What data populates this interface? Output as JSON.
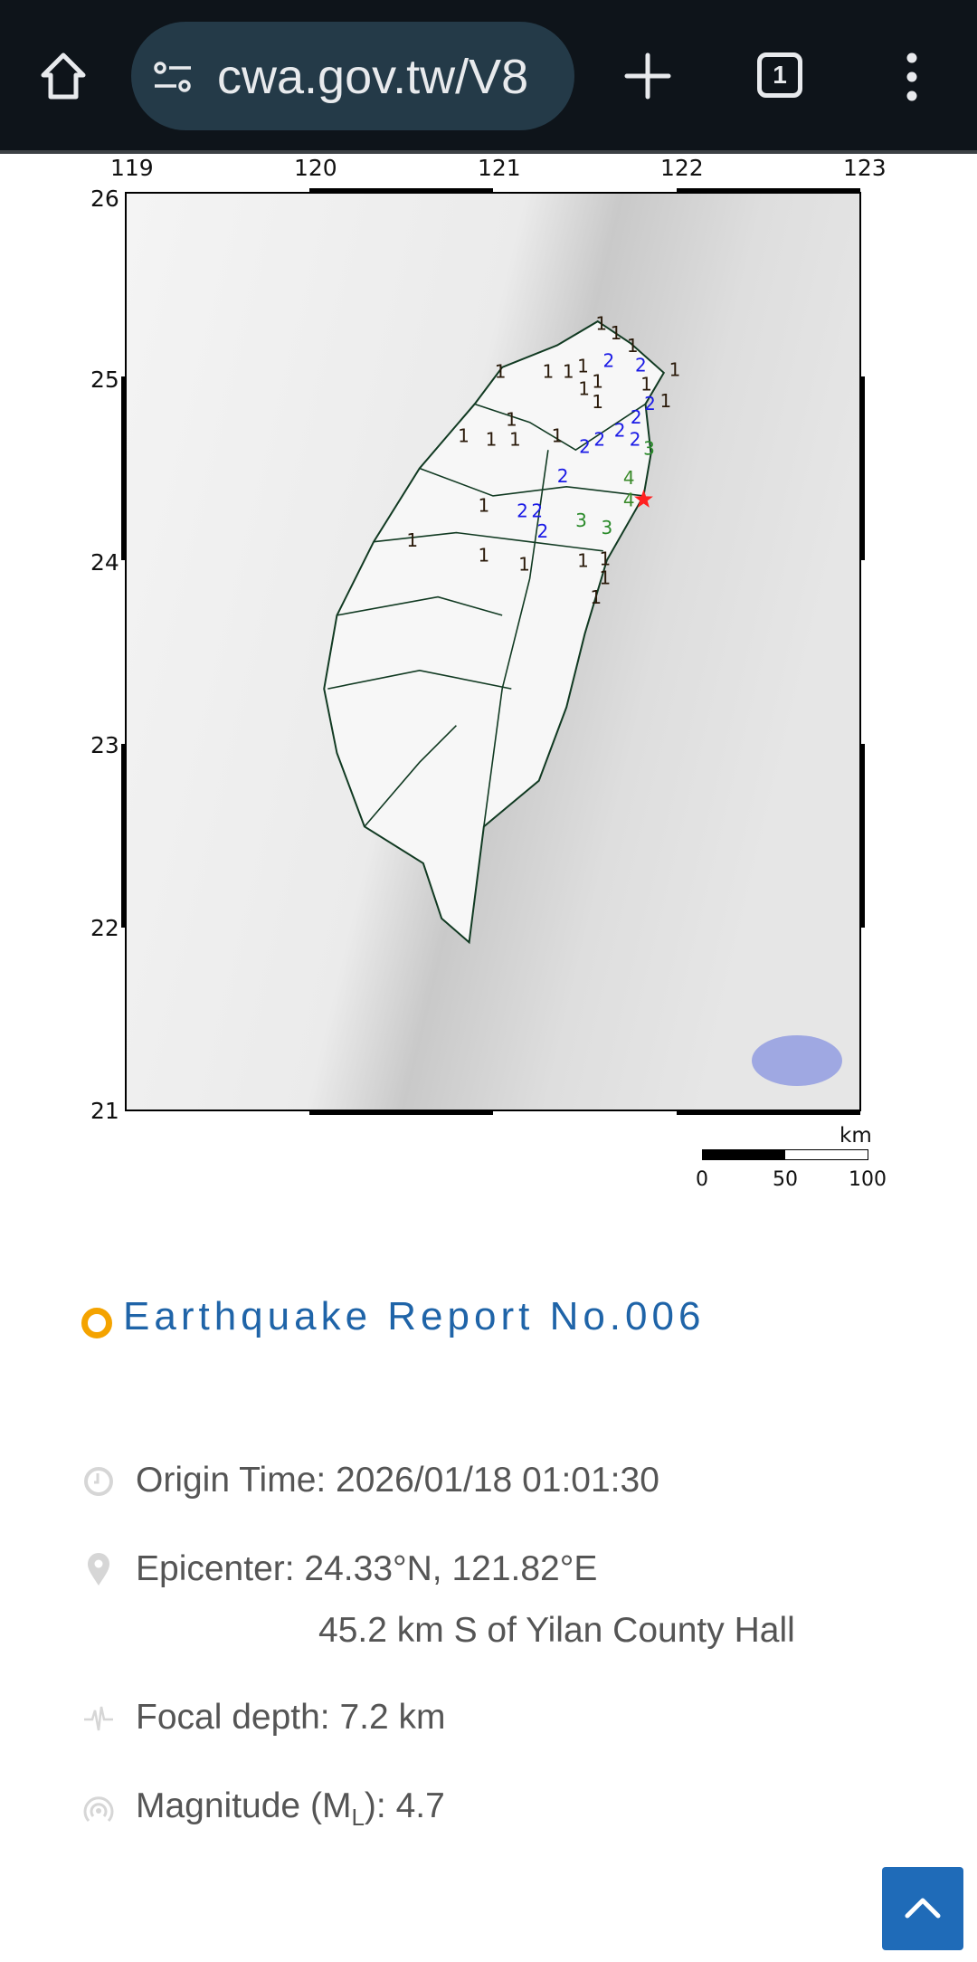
{
  "browser": {
    "url": "cwa.gov.tw/V8",
    "tab_count": "1",
    "icons": [
      "home-icon",
      "site-settings-icon",
      "new-tab-icon",
      "tab-switcher-icon",
      "more-menu-icon"
    ]
  },
  "map": {
    "lon_ticks": [
      "119",
      "120",
      "121",
      "122",
      "123"
    ],
    "lat_ticks": [
      "26",
      "25",
      "24",
      "23",
      "22",
      "21"
    ],
    "scale_unit": "km",
    "scale_labels": [
      "0",
      "50",
      "100"
    ],
    "epicenter": {
      "lat": 24.33,
      "lon": 121.82,
      "color": "#ff2020"
    },
    "intensity_colors": {
      "1": "#2a1a0a",
      "2": "#1a1ae6",
      "3": "#2a8a2a",
      "4": "#3a8a2a"
    },
    "intensities": [
      {
        "v": "1",
        "lon": 121.59,
        "lat": 25.28
      },
      {
        "v": "1",
        "lon": 121.67,
        "lat": 25.23
      },
      {
        "v": "1",
        "lon": 121.76,
        "lat": 25.16
      },
      {
        "v": "2",
        "lon": 121.63,
        "lat": 25.08
      },
      {
        "v": "2",
        "lon": 121.78,
        "lat": 25.08
      },
      {
        "v": "1",
        "lon": 121.3,
        "lat": 25.02
      },
      {
        "v": "1",
        "lon": 121.41,
        "lat": 25.02
      },
      {
        "v": "1",
        "lon": 121.49,
        "lat": 25.05
      },
      {
        "v": "1",
        "lon": 121.54,
        "lat": 25.04
      },
      {
        "v": "1",
        "lon": 121.04,
        "lat": 25.02
      },
      {
        "v": "1",
        "lon": 121.82,
        "lat": 24.98
      },
      {
        "v": "1",
        "lon": 121.99,
        "lat": 25.03
      },
      {
        "v": "1",
        "lon": 121.53,
        "lat": 24.96
      },
      {
        "v": "1",
        "lon": 121.54,
        "lat": 24.87
      },
      {
        "v": "2",
        "lon": 121.83,
        "lat": 24.87
      },
      {
        "v": "1",
        "lon": 121.94,
        "lat": 24.86
      },
      {
        "v": "2",
        "lon": 121.69,
        "lat": 24.7
      },
      {
        "v": "2",
        "lon": 121.76,
        "lat": 24.77
      },
      {
        "v": "2",
        "lon": 121.5,
        "lat": 24.61
      },
      {
        "v": "2",
        "lon": 121.58,
        "lat": 24.65
      },
      {
        "v": "2",
        "lon": 121.71,
        "lat": 24.65
      },
      {
        "v": "1",
        "lon": 120.84,
        "lat": 24.67
      },
      {
        "v": "1",
        "lon": 120.99,
        "lat": 24.65
      },
      {
        "v": "1",
        "lon": 121.12,
        "lat": 24.65
      },
      {
        "v": "1",
        "lon": 121.35,
        "lat": 24.67
      },
      {
        "v": "1",
        "lon": 121.12,
        "lat": 24.75
      },
      {
        "v": "3",
        "lon": 121.85,
        "lat": 24.6
      },
      {
        "v": "4",
        "lon": 121.74,
        "lat": 24.44
      },
      {
        "v": "4",
        "lon": 121.74,
        "lat": 24.32
      },
      {
        "v": "2",
        "lon": 121.38,
        "lat": 24.45
      },
      {
        "v": "1",
        "lon": 120.95,
        "lat": 24.29
      },
      {
        "v": "2",
        "lon": 121.16,
        "lat": 24.26
      },
      {
        "v": "2",
        "lon": 121.24,
        "lat": 24.26
      },
      {
        "v": "2",
        "lon": 121.27,
        "lat": 24.15
      },
      {
        "v": "3",
        "lon": 121.48,
        "lat": 24.21
      },
      {
        "v": "3",
        "lon": 121.62,
        "lat": 24.17
      },
      {
        "v": "1",
        "lon": 120.56,
        "lat": 24.1
      },
      {
        "v": "1",
        "lon": 120.95,
        "lat": 24.02
      },
      {
        "v": "1",
        "lon": 121.17,
        "lat": 23.97
      },
      {
        "v": "1",
        "lon": 121.49,
        "lat": 23.99
      },
      {
        "v": "1",
        "lon": 121.61,
        "lat": 24.0
      },
      {
        "v": "1",
        "lon": 121.61,
        "lat": 23.93
      },
      {
        "v": "1",
        "lon": 121.56,
        "lat": 23.79
      }
    ]
  },
  "report": {
    "title": "Earthquake Report No.006",
    "origin_time": "Origin Time: 2026/01/18 01:01:30",
    "epicenter": "Epicenter: 24.33°N, 121.82°E",
    "epicenter_relative": "45.2 km S of Yilan County Hall",
    "focal_depth": "Focal depth: 7.2 km",
    "magnitude_prefix": "Magnitude (M",
    "magnitude_sub": "L",
    "magnitude_suffix": "): 4.7",
    "accent_color": "#1f64a8",
    "bullet_color": "#f4a300"
  },
  "scroll_top_icon": "chevron-up-icon"
}
